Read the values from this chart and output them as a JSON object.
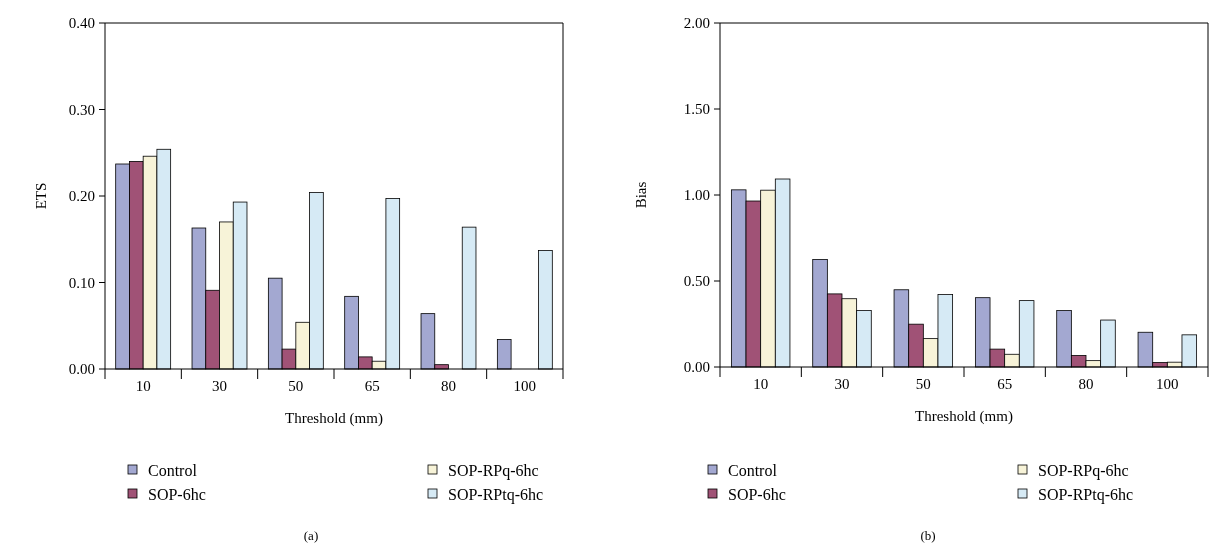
{
  "chart_data": [
    {
      "type": "bar",
      "xlabel": "Threshold (mm)",
      "ylabel": "ETS",
      "categories": [
        "10",
        "30",
        "50",
        "65",
        "80",
        "100"
      ],
      "series": [
        {
          "name": "Control",
          "color": "#a3a8d1",
          "values": [
            0.237,
            0.163,
            0.105,
            0.084,
            0.064,
            0.034
          ]
        },
        {
          "name": "SOP-6hc",
          "color": "#a05276",
          "values": [
            0.24,
            0.091,
            0.023,
            0.014,
            0.005,
            null
          ]
        },
        {
          "name": "SOP-RPq-6hc",
          "color": "#f7f3d8",
          "values": [
            0.246,
            0.17,
            0.054,
            0.009,
            null,
            null
          ]
        },
        {
          "name": "SOP-RPtq-6hc",
          "color": "#d6eaf5",
          "values": [
            0.254,
            0.193,
            0.204,
            0.197,
            0.164,
            0.137
          ]
        }
      ],
      "ylim": [
        0,
        0.4
      ],
      "yticks": [
        {
          "value": 0,
          "label": "0.00"
        },
        {
          "value": 0.1,
          "label": "0.10"
        },
        {
          "value": 0.2,
          "label": "0.20"
        },
        {
          "value": 0.3,
          "label": "0.30"
        },
        {
          "value": 0.4,
          "label": "0.40"
        }
      ],
      "grid": false,
      "legend": "bottom",
      "annotations": [
        "(a)"
      ]
    },
    {
      "type": "bar",
      "xlabel": "Threshold (mm)",
      "ylabel": "Bias",
      "categories": [
        "10",
        "30",
        "50",
        "65",
        "80",
        "100"
      ],
      "series": [
        {
          "name": "Control",
          "color": "#a3a8d1",
          "values": [
            1.03,
            0.625,
            0.449,
            0.403,
            0.328,
            0.202
          ]
        },
        {
          "name": "SOP-6hc",
          "color": "#a05276",
          "values": [
            0.965,
            0.425,
            0.249,
            0.104,
            0.067,
            0.026
          ]
        },
        {
          "name": "SOP-RPq-6hc",
          "color": "#f7f3d8",
          "values": [
            1.028,
            0.397,
            0.165,
            0.074,
            0.037,
            0.028
          ]
        },
        {
          "name": "SOP-RPtq-6hc",
          "color": "#d6eaf5",
          "values": [
            1.093,
            0.328,
            0.421,
            0.386,
            0.273,
            0.187
          ]
        }
      ],
      "ylim": [
        0,
        2
      ],
      "yticks": [
        {
          "value": 0,
          "label": "0.00"
        },
        {
          "value": 0.5,
          "label": "0.50"
        },
        {
          "value": 1,
          "label": "1.00"
        },
        {
          "value": 1.5,
          "label": "1.50"
        },
        {
          "value": 2,
          "label": "2.00"
        }
      ],
      "grid": false,
      "legend": "bottom",
      "annotations": [
        "(b)"
      ]
    }
  ]
}
